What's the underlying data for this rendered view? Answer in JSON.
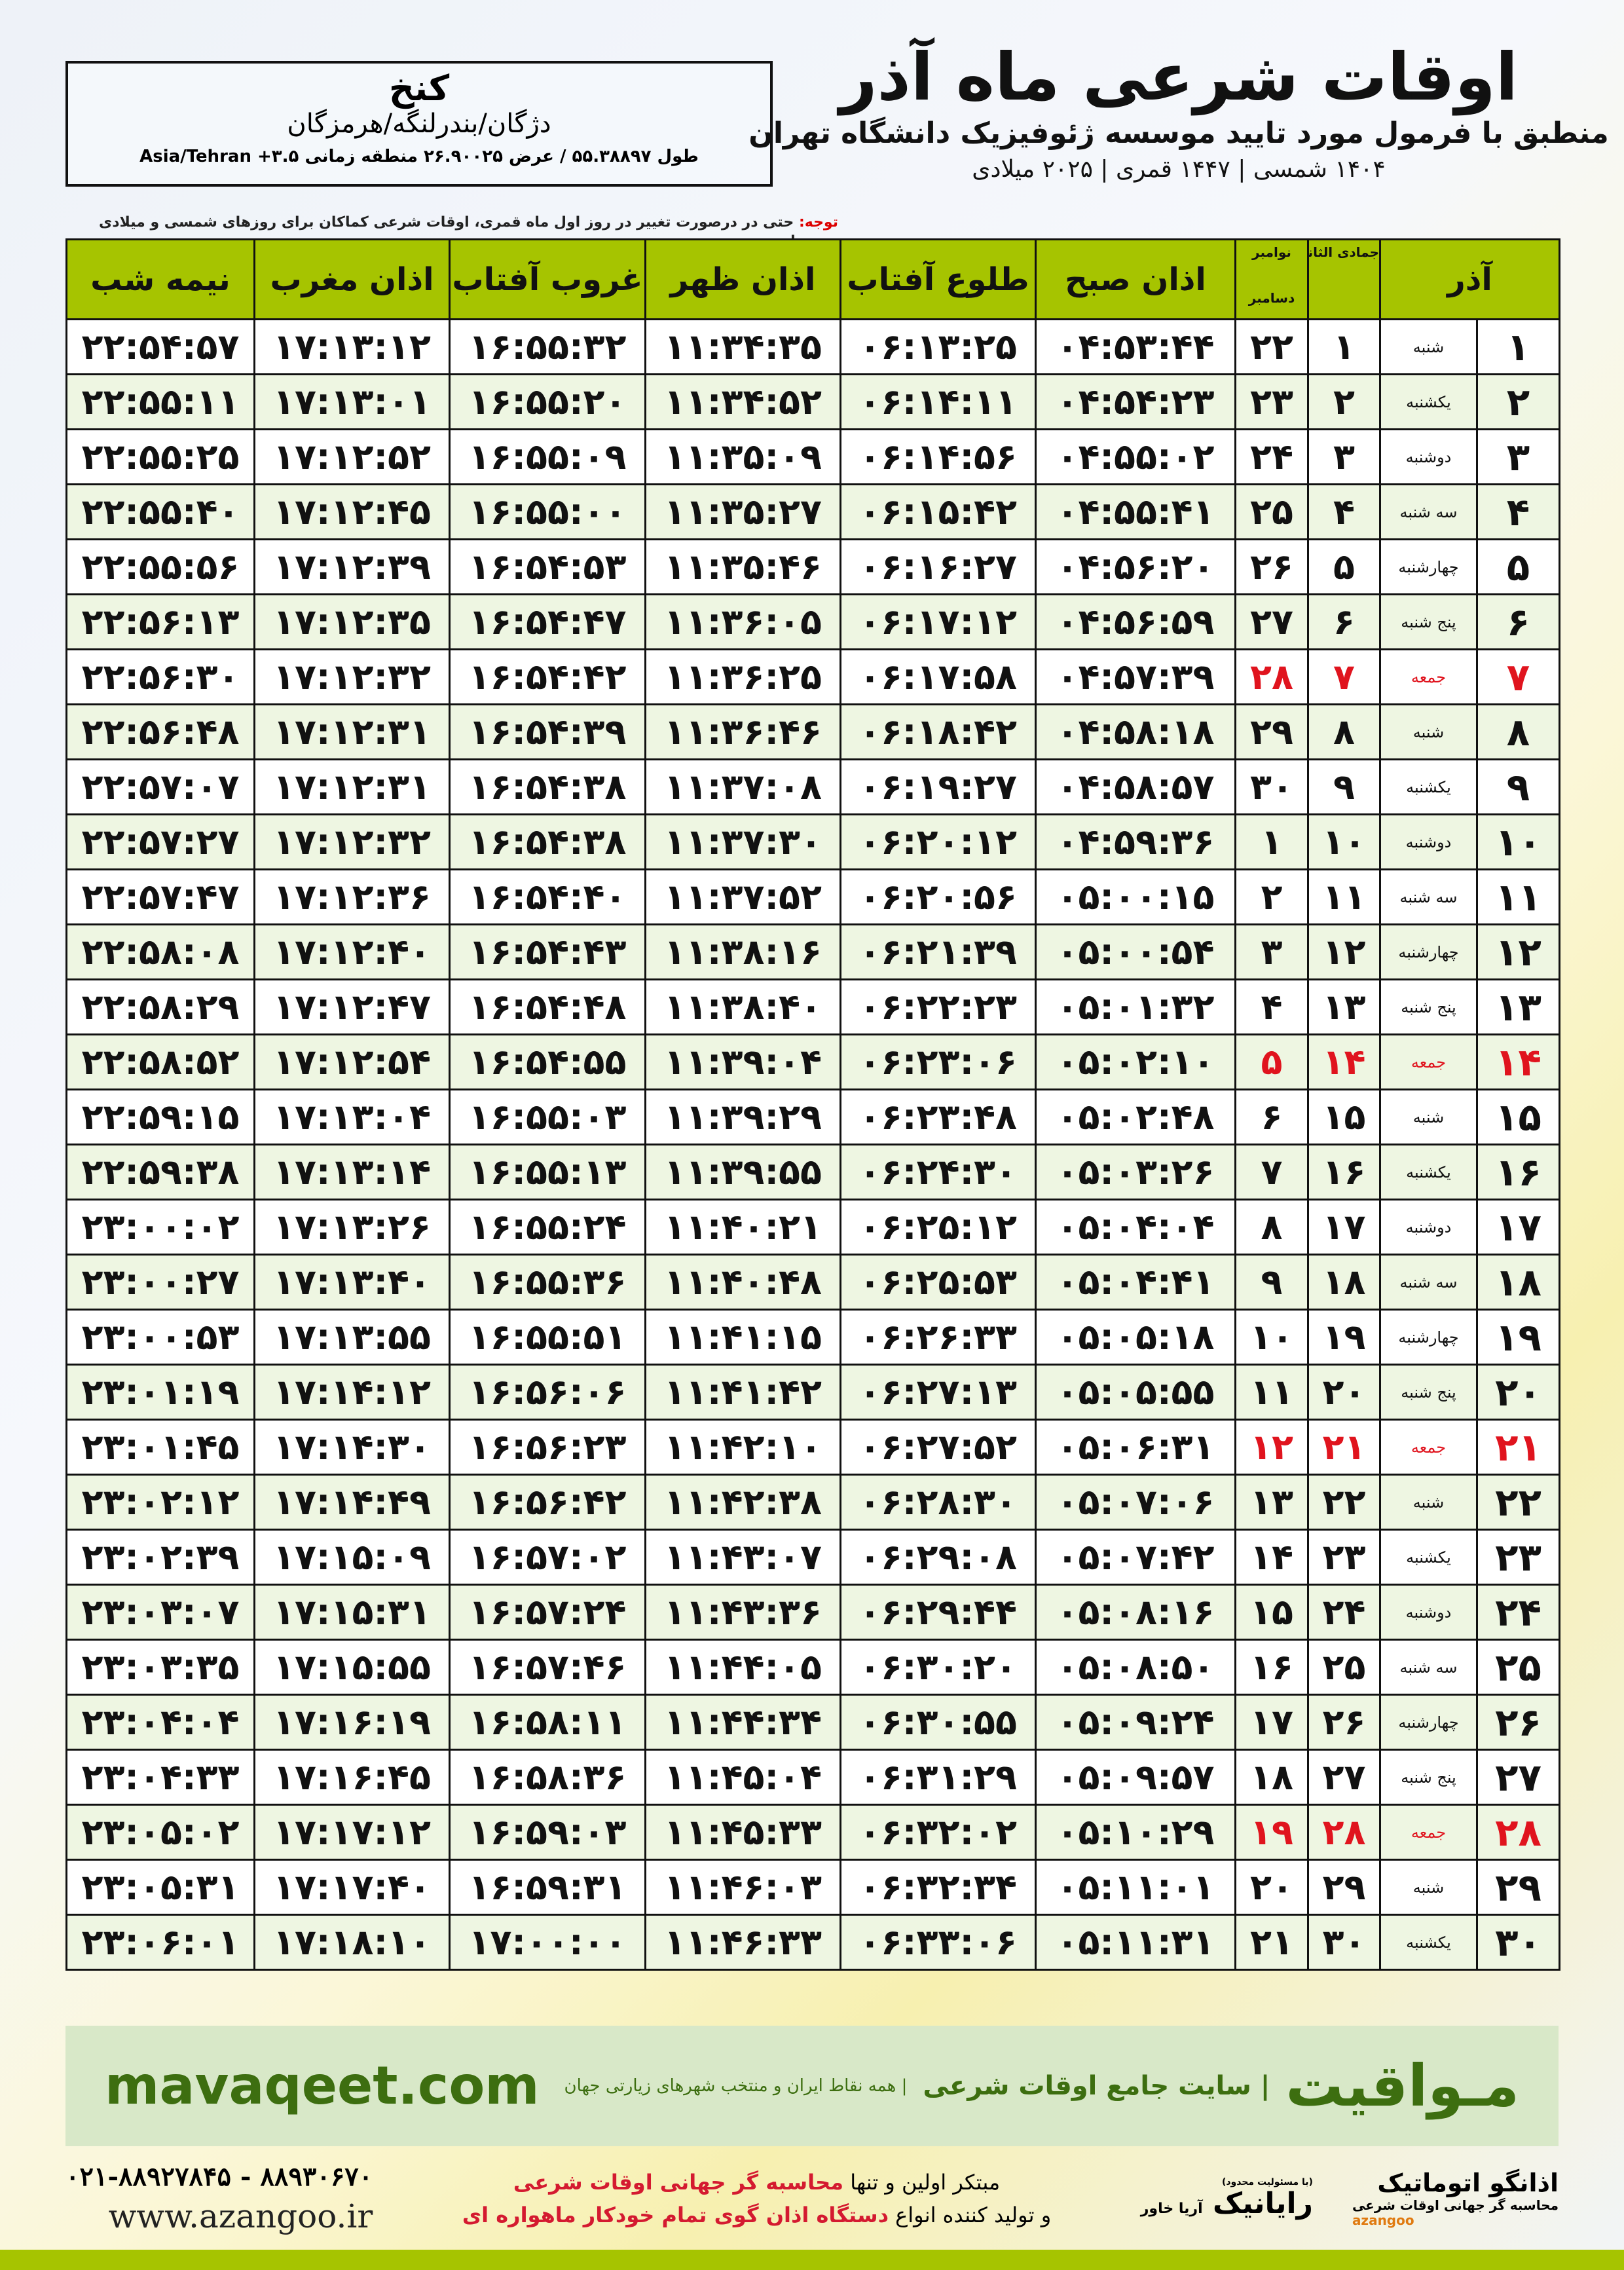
{
  "header": {
    "title": "اوقات شرعی ماه آذر",
    "subtitle": "منطبق با فرمول مورد تایید موسسه ژئوفیزیک دانشگاه تهران",
    "dates": "۱۴۰۴ شمسی | ۱۴۴۷ قمری | ۲۰۲۵ میلادی",
    "note_label": "توجه:",
    "note": " حتی در درصورت تغییر در روز اول ماه قمری، اوقات شرعی کماکان برای روزهای شمسی و میلادی معتبر است."
  },
  "location": {
    "city": "کنخ",
    "region": "دژگان/بندرلنگه/هرمزگان",
    "coords": "طول ۵۵.۳۸۸۹۷ / عرض ۲۶.۹۰۰۲۵ منطقه زمانی ۳.۵+ Asia/Tehran"
  },
  "columns": {
    "month": "آذر",
    "qamari": "جمادی الثانی",
    "miladi_top": "نوامبر",
    "miladi_bottom": "دسامبر",
    "sobh": "اذان صبح",
    "tolu": "طلوع آفتاب",
    "zohr": "اذان ظهر",
    "ghorub": "غروب آفتاب",
    "maghreb": "اذان مغرب",
    "nime": "نیمه شب"
  },
  "colors": {
    "header": "#a6c400",
    "friday": "#e0141e",
    "brand": "#3d6e10"
  },
  "rows": [
    [
      "۱",
      "شنبه",
      "۱",
      "۲۲",
      "۰۴:۵۳:۴۴",
      "۰۶:۱۳:۲۵",
      "۱۱:۳۴:۳۵",
      "۱۶:۵۵:۳۲",
      "۱۷:۱۳:۱۲",
      "۲۲:۵۴:۵۷"
    ],
    [
      "۲",
      "یکشنبه",
      "۲",
      "۲۳",
      "۰۴:۵۴:۲۳",
      "۰۶:۱۴:۱۱",
      "۱۱:۳۴:۵۲",
      "۱۶:۵۵:۲۰",
      "۱۷:۱۳:۰۱",
      "۲۲:۵۵:۱۱"
    ],
    [
      "۳",
      "دوشنبه",
      "۳",
      "۲۴",
      "۰۴:۵۵:۰۲",
      "۰۶:۱۴:۵۶",
      "۱۱:۳۵:۰۹",
      "۱۶:۵۵:۰۹",
      "۱۷:۱۲:۵۲",
      "۲۲:۵۵:۲۵"
    ],
    [
      "۴",
      "سه شنبه",
      "۴",
      "۲۵",
      "۰۴:۵۵:۴۱",
      "۰۶:۱۵:۴۲",
      "۱۱:۳۵:۲۷",
      "۱۶:۵۵:۰۰",
      "۱۷:۱۲:۴۵",
      "۲۲:۵۵:۴۰"
    ],
    [
      "۵",
      "چهارشنبه",
      "۵",
      "۲۶",
      "۰۴:۵۶:۲۰",
      "۰۶:۱۶:۲۷",
      "۱۱:۳۵:۴۶",
      "۱۶:۵۴:۵۳",
      "۱۷:۱۲:۳۹",
      "۲۲:۵۵:۵۶"
    ],
    [
      "۶",
      "پنج شنبه",
      "۶",
      "۲۷",
      "۰۴:۵۶:۵۹",
      "۰۶:۱۷:۱۲",
      "۱۱:۳۶:۰۵",
      "۱۶:۵۴:۴۷",
      "۱۷:۱۲:۳۵",
      "۲۲:۵۶:۱۳"
    ],
    [
      "۷",
      "جمعه",
      "۷",
      "۲۸",
      "۰۴:۵۷:۳۹",
      "۰۶:۱۷:۵۸",
      "۱۱:۳۶:۲۵",
      "۱۶:۵۴:۴۲",
      "۱۷:۱۲:۳۲",
      "۲۲:۵۶:۳۰"
    ],
    [
      "۸",
      "شنبه",
      "۸",
      "۲۹",
      "۰۴:۵۸:۱۸",
      "۰۶:۱۸:۴۲",
      "۱۱:۳۶:۴۶",
      "۱۶:۵۴:۳۹",
      "۱۷:۱۲:۳۱",
      "۲۲:۵۶:۴۸"
    ],
    [
      "۹",
      "یکشنبه",
      "۹",
      "۳۰",
      "۰۴:۵۸:۵۷",
      "۰۶:۱۹:۲۷",
      "۱۱:۳۷:۰۸",
      "۱۶:۵۴:۳۸",
      "۱۷:۱۲:۳۱",
      "۲۲:۵۷:۰۷"
    ],
    [
      "۱۰",
      "دوشنبه",
      "۱۰",
      "۱",
      "۰۴:۵۹:۳۶",
      "۰۶:۲۰:۱۲",
      "۱۱:۳۷:۳۰",
      "۱۶:۵۴:۳۸",
      "۱۷:۱۲:۳۲",
      "۲۲:۵۷:۲۷"
    ],
    [
      "۱۱",
      "سه شنبه",
      "۱۱",
      "۲",
      "۰۵:۰۰:۱۵",
      "۰۶:۲۰:۵۶",
      "۱۱:۳۷:۵۲",
      "۱۶:۵۴:۴۰",
      "۱۷:۱۲:۳۶",
      "۲۲:۵۷:۴۷"
    ],
    [
      "۱۲",
      "چهارشنبه",
      "۱۲",
      "۳",
      "۰۵:۰۰:۵۴",
      "۰۶:۲۱:۳۹",
      "۱۱:۳۸:۱۶",
      "۱۶:۵۴:۴۳",
      "۱۷:۱۲:۴۰",
      "۲۲:۵۸:۰۸"
    ],
    [
      "۱۳",
      "پنج شنبه",
      "۱۳",
      "۴",
      "۰۵:۰۱:۳۲",
      "۰۶:۲۲:۲۳",
      "۱۱:۳۸:۴۰",
      "۱۶:۵۴:۴۸",
      "۱۷:۱۲:۴۷",
      "۲۲:۵۸:۲۹"
    ],
    [
      "۱۴",
      "جمعه",
      "۱۴",
      "۵",
      "۰۵:۰۲:۱۰",
      "۰۶:۲۳:۰۶",
      "۱۱:۳۹:۰۴",
      "۱۶:۵۴:۵۵",
      "۱۷:۱۲:۵۴",
      "۲۲:۵۸:۵۲"
    ],
    [
      "۱۵",
      "شنبه",
      "۱۵",
      "۶",
      "۰۵:۰۲:۴۸",
      "۰۶:۲۳:۴۸",
      "۱۱:۳۹:۲۹",
      "۱۶:۵۵:۰۳",
      "۱۷:۱۳:۰۴",
      "۲۲:۵۹:۱۵"
    ],
    [
      "۱۶",
      "یکشنبه",
      "۱۶",
      "۷",
      "۰۵:۰۳:۲۶",
      "۰۶:۲۴:۳۰",
      "۱۱:۳۹:۵۵",
      "۱۶:۵۵:۱۳",
      "۱۷:۱۳:۱۴",
      "۲۲:۵۹:۳۸"
    ],
    [
      "۱۷",
      "دوشنبه",
      "۱۷",
      "۸",
      "۰۵:۰۴:۰۴",
      "۰۶:۲۵:۱۲",
      "۱۱:۴۰:۲۱",
      "۱۶:۵۵:۲۴",
      "۱۷:۱۳:۲۶",
      "۲۳:۰۰:۰۲"
    ],
    [
      "۱۸",
      "سه شنبه",
      "۱۸",
      "۹",
      "۰۵:۰۴:۴۱",
      "۰۶:۲۵:۵۳",
      "۱۱:۴۰:۴۸",
      "۱۶:۵۵:۳۶",
      "۱۷:۱۳:۴۰",
      "۲۳:۰۰:۲۷"
    ],
    [
      "۱۹",
      "چهارشنبه",
      "۱۹",
      "۱۰",
      "۰۵:۰۵:۱۸",
      "۰۶:۲۶:۳۳",
      "۱۱:۴۱:۱۵",
      "۱۶:۵۵:۵۱",
      "۱۷:۱۳:۵۵",
      "۲۳:۰۰:۵۳"
    ],
    [
      "۲۰",
      "پنج شنبه",
      "۲۰",
      "۱۱",
      "۰۵:۰۵:۵۵",
      "۰۶:۲۷:۱۳",
      "۱۱:۴۱:۴۲",
      "۱۶:۵۶:۰۶",
      "۱۷:۱۴:۱۲",
      "۲۳:۰۱:۱۹"
    ],
    [
      "۲۱",
      "جمعه",
      "۲۱",
      "۱۲",
      "۰۵:۰۶:۳۱",
      "۰۶:۲۷:۵۲",
      "۱۱:۴۲:۱۰",
      "۱۶:۵۶:۲۳",
      "۱۷:۱۴:۳۰",
      "۲۳:۰۱:۴۵"
    ],
    [
      "۲۲",
      "شنبه",
      "۲۲",
      "۱۳",
      "۰۵:۰۷:۰۶",
      "۰۶:۲۸:۳۰",
      "۱۱:۴۲:۳۸",
      "۱۶:۵۶:۴۲",
      "۱۷:۱۴:۴۹",
      "۲۳:۰۲:۱۲"
    ],
    [
      "۲۳",
      "یکشنبه",
      "۲۳",
      "۱۴",
      "۰۵:۰۷:۴۲",
      "۰۶:۲۹:۰۸",
      "۱۱:۴۳:۰۷",
      "۱۶:۵۷:۰۲",
      "۱۷:۱۵:۰۹",
      "۲۳:۰۲:۳۹"
    ],
    [
      "۲۴",
      "دوشنبه",
      "۲۴",
      "۱۵",
      "۰۵:۰۸:۱۶",
      "۰۶:۲۹:۴۴",
      "۱۱:۴۳:۳۶",
      "۱۶:۵۷:۲۴",
      "۱۷:۱۵:۳۱",
      "۲۳:۰۳:۰۷"
    ],
    [
      "۲۵",
      "سه شنبه",
      "۲۵",
      "۱۶",
      "۰۵:۰۸:۵۰",
      "۰۶:۳۰:۲۰",
      "۱۱:۴۴:۰۵",
      "۱۶:۵۷:۴۶",
      "۱۷:۱۵:۵۵",
      "۲۳:۰۳:۳۵"
    ],
    [
      "۲۶",
      "چهارشنبه",
      "۲۶",
      "۱۷",
      "۰۵:۰۹:۲۴",
      "۰۶:۳۰:۵۵",
      "۱۱:۴۴:۳۴",
      "۱۶:۵۸:۱۱",
      "۱۷:۱۶:۱۹",
      "۲۳:۰۴:۰۴"
    ],
    [
      "۲۷",
      "پنج شنبه",
      "۲۷",
      "۱۸",
      "۰۵:۰۹:۵۷",
      "۰۶:۳۱:۲۹",
      "۱۱:۴۵:۰۴",
      "۱۶:۵۸:۳۶",
      "۱۷:۱۶:۴۵",
      "۲۳:۰۴:۳۳"
    ],
    [
      "۲۸",
      "جمعه",
      "۲۸",
      "۱۹",
      "۰۵:۱۰:۲۹",
      "۰۶:۳۲:۰۲",
      "۱۱:۴۵:۳۳",
      "۱۶:۵۹:۰۳",
      "۱۷:۱۷:۱۲",
      "۲۳:۰۵:۰۲"
    ],
    [
      "۲۹",
      "شنبه",
      "۲۹",
      "۲۰",
      "۰۵:۱۱:۰۱",
      "۰۶:۳۲:۳۴",
      "۱۱:۴۶:۰۳",
      "۱۶:۵۹:۳۱",
      "۱۷:۱۷:۴۰",
      "۲۳:۰۵:۳۱"
    ],
    [
      "۳۰",
      "یکشنبه",
      "۳۰",
      "۲۱",
      "۰۵:۱۱:۳۱",
      "۰۶:۳۳:۰۶",
      "۱۱:۴۶:۳۳",
      "۱۷:۰۰:۰۰",
      "۱۷:۱۸:۱۰",
      "۲۳:۰۶:۰۱"
    ]
  ],
  "footer": {
    "brand": "مـواقیت",
    "tagline": "| سایت جامع اوقات شرعی",
    "tagline_sub": "| همه نقاط ایران و منتخب شهرهای زیارتی جهان",
    "url": "mavaqeet.com",
    "promo1_a": "مبتکر اولین و تنها ",
    "promo1_b": "محاسبه گر جهانی اوقات شرعی",
    "promo2_a": "و تولید کننده انواع ",
    "promo2_b": "دستگاه اذان گوی تمام خودکار ماهواره ای",
    "phone": "۰۲۱-۸۸۹۲۷۸۴۵ - ۸۸۹۳۰۶۷۰",
    "website": "www.azangoo.ir",
    "rayanik": "رایانیک",
    "rayanik_sub": "آریا خاور",
    "rayanik_note": "(با مسئولیت محدود)",
    "azangoo": "اذانگو اتوماتیک",
    "azangoo_sub": "محاسبه گر جهانی اوقات شرعی",
    "azangoo_en": "azangoo"
  }
}
